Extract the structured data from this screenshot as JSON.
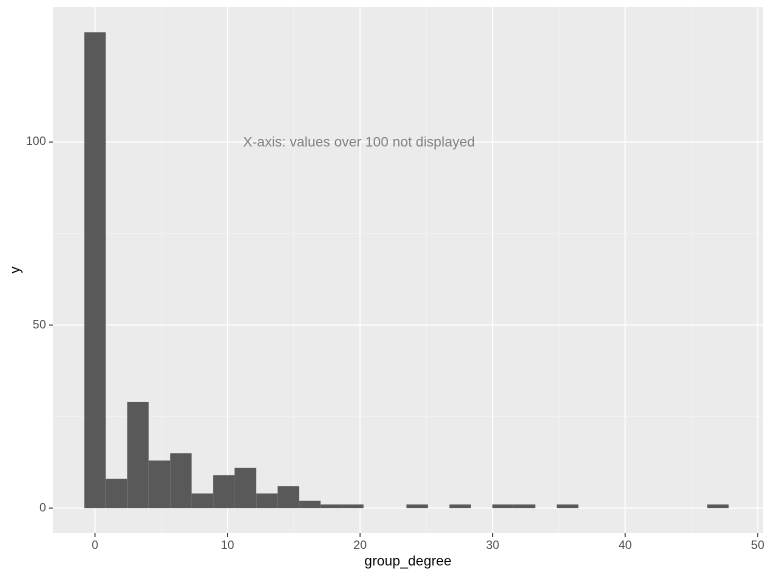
{
  "chart_data": {
    "type": "histogram",
    "x_label": "group_degree",
    "y_label": "y",
    "annotation": "X-axis: values over 100 not displayed",
    "bins": [
      -0.81,
      0.81,
      2.43,
      4.05,
      5.67,
      7.29,
      8.91,
      10.53,
      12.16,
      13.78,
      15.4,
      17.02,
      18.64,
      20.26,
      21.88,
      23.5,
      25.12,
      26.74,
      28.36,
      29.98,
      31.6,
      33.22,
      34.84,
      36.47,
      38.09,
      39.71,
      41.33,
      42.95,
      44.57,
      46.19,
      47.81
    ],
    "values": [
      130,
      8,
      29,
      13,
      15,
      4,
      9,
      11,
      4,
      6,
      2,
      1,
      1,
      0,
      0,
      1,
      0,
      1,
      0,
      1,
      1,
      0,
      1,
      0,
      0,
      0,
      0,
      0,
      0,
      1
    ],
    "color": "#595959",
    "xlim": [
      -3.17,
      50.4
    ],
    "ylim": [
      -6.8,
      136.9
    ],
    "xticks": [
      0,
      10,
      20,
      30,
      40,
      50
    ],
    "yticks": [
      0,
      50,
      100
    ],
    "grid": true
  }
}
